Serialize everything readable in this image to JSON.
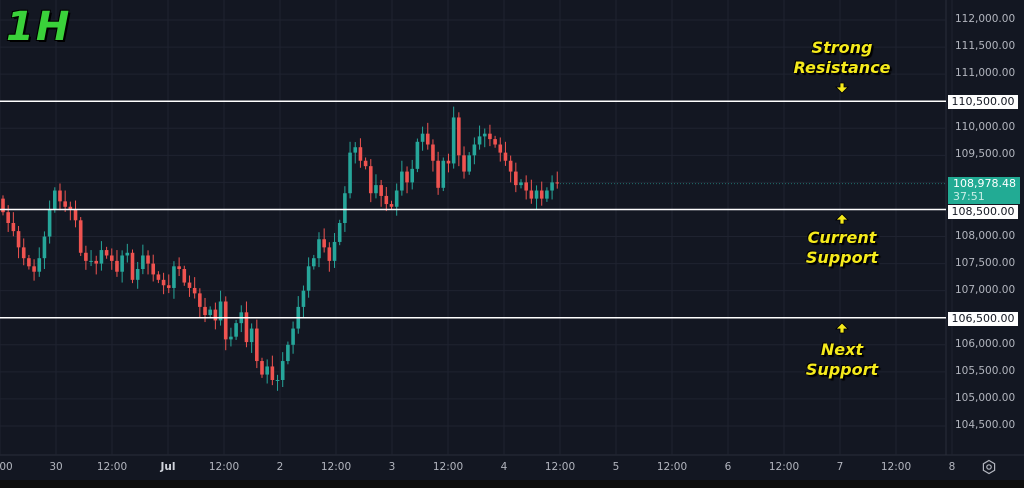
{
  "header": {
    "timeframe": "1H"
  },
  "annotations": {
    "resistance": {
      "line1": "Strong",
      "line2": "Resistance",
      "arrow": "down"
    },
    "current_support": {
      "line1": "Current",
      "line2": "Support",
      "arrow": "up"
    },
    "next_support": {
      "line1": "Next",
      "line2": "Support",
      "arrow": "up"
    }
  },
  "price_axis": {
    "ticks": [
      "112,000.00",
      "111,500.00",
      "111,000.00",
      "110,000.00",
      "109,500.00",
      "108,000.00",
      "107,500.00",
      "107,000.00",
      "106,000.00",
      "105,500.00",
      "105,000.00",
      "104,500.00"
    ],
    "level_labels": {
      "resistance": "110,500.00",
      "current_support": "108,500.00",
      "next_support": "106,500.00"
    },
    "last_price": "108,978.48",
    "countdown": "37:51"
  },
  "time_axis": {
    "ticks": [
      "00",
      "30",
      "12:00",
      "Jul",
      "12:00",
      "2",
      "12:00",
      "3",
      "12:00",
      "4",
      "12:00",
      "5",
      "12:00",
      "6",
      "12:00",
      "7",
      "12:00",
      "8"
    ]
  },
  "colors": {
    "background": "#131722",
    "up": "#26a69a",
    "down": "#ef5350",
    "level_line": "#ffffff",
    "annotation": "#f5ea1c",
    "timeframe": "#3ad13a"
  },
  "chart_data": {
    "type": "candlestick",
    "title": "1H",
    "xlabel": "",
    "ylabel": "",
    "ylim": [
      104100,
      112300
    ],
    "grid": true,
    "horizontal_levels": [
      {
        "label": "Strong Resistance",
        "value": 110500
      },
      {
        "label": "Current Support",
        "value": 108500
      },
      {
        "label": "Next Support",
        "value": 106500
      }
    ],
    "last_price": 108978.48,
    "x_ticks": [
      "Jun 29 00:00",
      "Jun 30",
      "12:00",
      "Jul 1",
      "12:00",
      "Jul 2",
      "12:00",
      "Jul 3",
      "12:00",
      "Jul 4",
      "12:00",
      "Jul 5",
      "12:00",
      "Jul 6",
      "12:00",
      "Jul 7",
      "12:00",
      "Jul 8"
    ],
    "closes_approx": [
      108450,
      108250,
      108100,
      107800,
      107600,
      107450,
      107350,
      107600,
      108000,
      108500,
      108850,
      108650,
      108550,
      108500,
      108300,
      107700,
      107550,
      107550,
      107500,
      107750,
      107650,
      107550,
      107350,
      107650,
      107700,
      107200,
      107400,
      107650,
      107500,
      107300,
      107200,
      107100,
      107050,
      107450,
      107400,
      107150,
      107050,
      106950,
      106700,
      106550,
      106650,
      106450,
      106800,
      106100,
      106150,
      106400,
      106600,
      106050,
      106300,
      105700,
      105450,
      105600,
      105350,
      105350,
      105700,
      106000,
      106300,
      106700,
      107000,
      107450,
      107600,
      107950,
      107800,
      107550,
      107900,
      108250,
      108800,
      109550,
      109650,
      109400,
      109300,
      108800,
      108950,
      108750,
      108600,
      108550,
      108850,
      109200,
      109000,
      109250,
      109750,
      109900,
      109700,
      109400,
      108900,
      109400,
      109350,
      110200,
      109500,
      109200,
      109500,
      109700,
      109850,
      109900,
      109800,
      109700,
      109550,
      109400,
      109200,
      108950,
      109000,
      108850,
      108700,
      108850,
      108700,
      108850,
      109000,
      108980
    ],
    "range_summary": {
      "high": 110450,
      "low": 105100
    }
  }
}
